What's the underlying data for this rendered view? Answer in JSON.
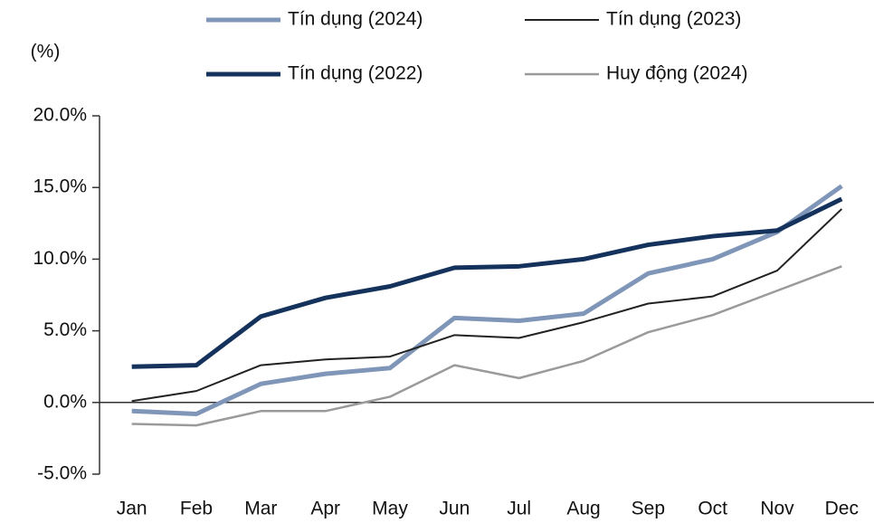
{
  "chart_data": {
    "type": "line",
    "y_label": "(%)",
    "categories": [
      "Jan",
      "Feb",
      "Mar",
      "Apr",
      "May",
      "Jun",
      "Jul",
      "Aug",
      "Sep",
      "Oct",
      "Nov",
      "Dec"
    ],
    "series": [
      {
        "name": "Tín dụng (2024)",
        "color": "#7f96b8",
        "width": 5,
        "values": [
          -0.6,
          -0.8,
          1.3,
          2.0,
          2.4,
          5.9,
          5.7,
          6.2,
          9.0,
          10.0,
          11.9,
          15.1
        ]
      },
      {
        "name": "Tín dụng (2023)",
        "color": "#222222",
        "width": 2,
        "values": [
          0.1,
          0.8,
          2.6,
          3.0,
          3.2,
          4.7,
          4.5,
          5.6,
          6.9,
          7.4,
          9.2,
          13.5
        ]
      },
      {
        "name": "Tín dụng (2022)",
        "color": "#14325c",
        "width": 5,
        "values": [
          2.5,
          2.6,
          6.0,
          7.3,
          8.1,
          9.4,
          9.5,
          10.0,
          11.0,
          11.6,
          12.0,
          14.2
        ]
      },
      {
        "name": "Huy động (2024)",
        "color": "#9a9a9a",
        "width": 2.5,
        "values": [
          -1.5,
          -1.6,
          -0.6,
          -0.6,
          0.4,
          2.6,
          1.7,
          2.9,
          4.9,
          6.1,
          7.8,
          9.5
        ]
      }
    ],
    "ylim": [
      -5,
      20
    ],
    "yticks": [
      {
        "value": -5,
        "label": "-5.0%"
      },
      {
        "value": 0,
        "label": "0.0%"
      },
      {
        "value": 5,
        "label": "5.0%"
      },
      {
        "value": 10,
        "label": "10.0%"
      },
      {
        "value": 15,
        "label": "15.0%"
      },
      {
        "value": 20,
        "label": "20.0%"
      }
    ]
  }
}
